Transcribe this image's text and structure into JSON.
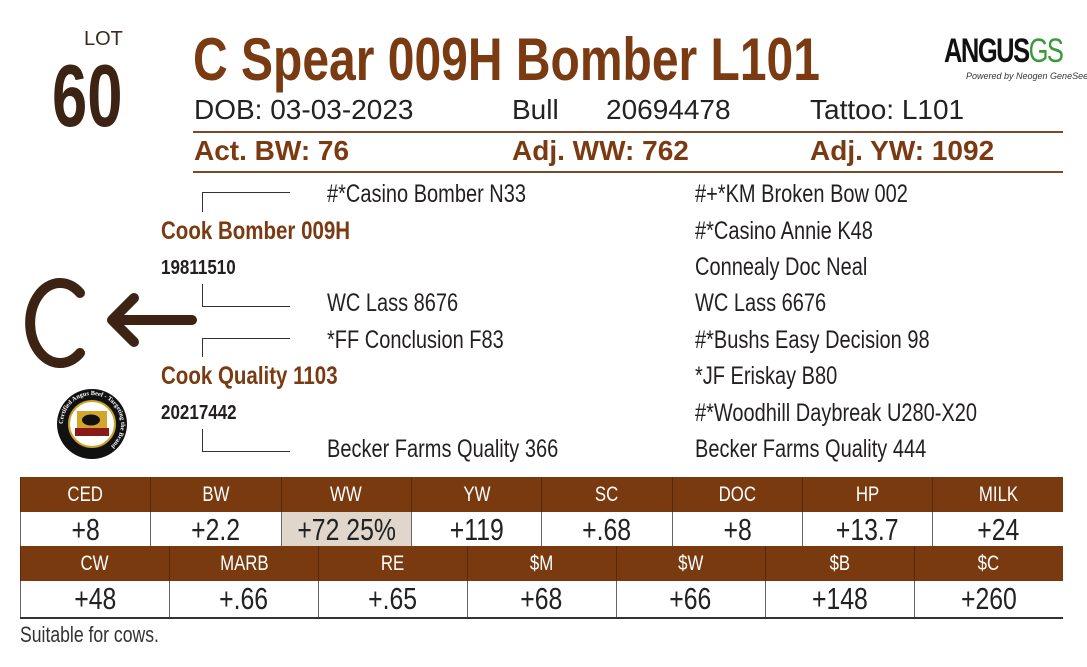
{
  "lot": {
    "label": "LOT",
    "number": "60"
  },
  "title": "C Spear 009H Bomber L101",
  "logo": {
    "text_main": "ANGUS",
    "text_gs": "GS",
    "tagline": "Powered by Neogen GeneSeek"
  },
  "info": {
    "dob": "DOB: 03-03-2023",
    "sex": "Bull",
    "reg": "20694478",
    "tattoo": "Tattoo: L101"
  },
  "weights": {
    "act_bw": "Act. BW: 76",
    "adj_ww": "Adj. WW: 762",
    "adj_yw": "Adj. YW: 1092"
  },
  "pedigree": {
    "sire": {
      "name": "Cook Bomber 009H",
      "reg": "19811510",
      "sire": "#*Casino Bomber N33",
      "dam": "WC Lass 8676"
    },
    "dam": {
      "name": "Cook Quality 1103",
      "reg": "20217442",
      "sire": "*FF Conclusion F83",
      "dam": "Becker Farms Quality 366"
    },
    "far": [
      "#+*KM Broken Bow 002",
      "#*Casino Annie K48",
      "Connealy Doc Neal",
      "WC Lass 6676",
      "#*Bushs Easy Decision 98",
      "*JF Eriskay B80",
      "#*Woodhill Daybreak U280-X20",
      "Becker Farms Quality 444"
    ]
  },
  "badges": {
    "brand": "C",
    "cab": "Certified Angus Beef - Targeting the Brand"
  },
  "epd_row1": {
    "headers": [
      "CED",
      "BW",
      "WW",
      "YW",
      "SC",
      "DOC",
      "HP",
      "MILK"
    ],
    "values": [
      "+8",
      "+2.2",
      "+72 25%",
      "+119",
      "+.68",
      "+8",
      "+13.7",
      "+24"
    ]
  },
  "epd_row2": {
    "headers": [
      "CW",
      "MARB",
      "RE",
      "$M",
      "$W",
      "$B",
      "$C"
    ],
    "values": [
      "+48",
      "+.66",
      "+.65",
      "+68",
      "+66",
      "+148",
      "+260"
    ]
  },
  "note": "Suitable for cows.",
  "colors": {
    "brown": "#7a3a12",
    "dark": "#3d2314",
    "highlight": "#e0d6cc"
  }
}
